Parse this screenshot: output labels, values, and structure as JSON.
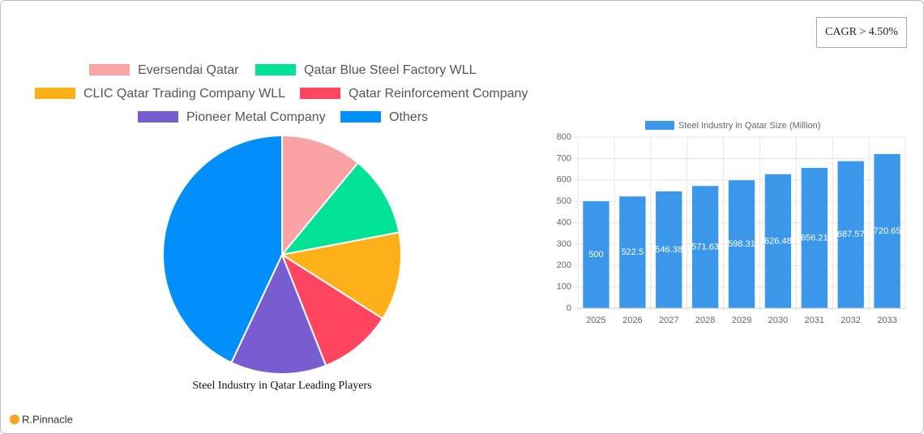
{
  "cagr": "CAGR > 4.50%",
  "brand": "R.Pinnacle",
  "chart_data": [
    {
      "type": "pie",
      "title": "Steel Industry in Qatar Leading Players",
      "categories": [
        "Eversendai Qatar",
        "Qatar Blue Steel Factory WLL",
        "CLIC Qatar Trading Company WLL",
        "Qatar Reinforcement Company",
        "Pioneer Metal Company",
        "Others"
      ],
      "values": [
        11,
        11,
        12,
        10,
        13,
        43
      ],
      "colors": [
        "#f9a3a4",
        "#00e396",
        "#feb019",
        "#ff4560",
        "#775dd0",
        "#008ffb"
      ]
    },
    {
      "type": "bar",
      "series": [
        {
          "name": "Steel Industry in Qatar Size (Million)",
          "color": "#3a97ea",
          "values": [
            500,
            522.5,
            546.38,
            571.63,
            598.31,
            626.48,
            656.21,
            687.57,
            720.65
          ]
        }
      ],
      "categories": [
        "2025",
        "2026",
        "2027",
        "2028",
        "2029",
        "2030",
        "2031",
        "2032",
        "2033"
      ],
      "ylim": [
        0,
        800
      ],
      "yticks": [
        0,
        100,
        200,
        300,
        400,
        500,
        600,
        700,
        800
      ],
      "grid": true
    }
  ]
}
